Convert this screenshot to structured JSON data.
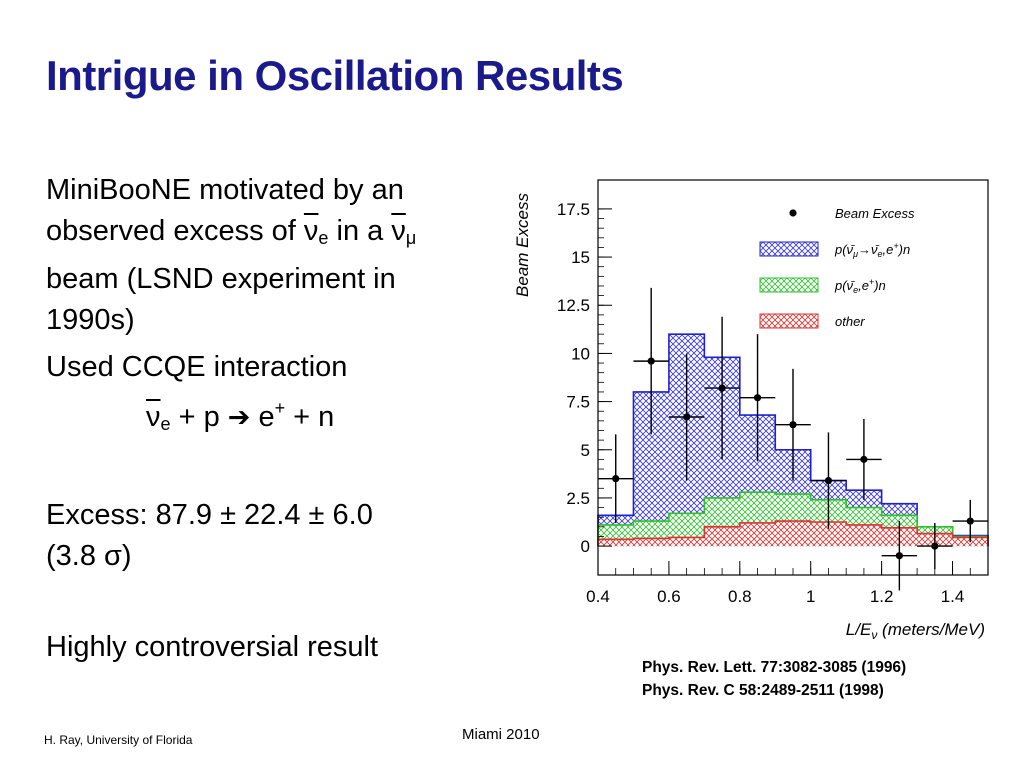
{
  "slide": {
    "title": "Intrigue in Oscillation Results",
    "bullet1": {
      "line1": "MiniBooNE motivated by an",
      "line2_pre": "observed excess of ",
      "nu_e": "ν",
      "sub_e": "e",
      "line2_mid": " in a ",
      "nu_mu": "ν",
      "sub_mu": "μ",
      "line3": "beam (LSND experiment in",
      "line4": "1990s)"
    },
    "bullet2": "Used CCQE interaction",
    "reaction": {
      "nu": "ν",
      "sub": "e",
      "lhs": " + p ",
      "arrow": "➔",
      "e": " e",
      "sup": "+",
      "rhs": " + n"
    },
    "excess": {
      "line1": "Excess: 87.9 ± 22.4 ± 6.0",
      "line2": "(3.8 σ)"
    },
    "bullet4": "Highly controversial result",
    "references": [
      "Phys. Rev. Lett. 77:3082-3085 (1996)",
      "Phys. Rev. C 58:2489-2511 (1998)"
    ],
    "footer_left": "H. Ray, University of Florida",
    "footer_center": "Miami 2010"
  },
  "chart_data": {
    "type": "bar",
    "title": "",
    "xlabel": "L/Eν (meters/MeV)",
    "ylabel": "Beam Excess",
    "xlim": [
      0.4,
      1.5
    ],
    "ylim": [
      -1.5,
      19
    ],
    "xticks": [
      0.4,
      0.6,
      0.8,
      1.0,
      1.2,
      1.4
    ],
    "xtick_labels": [
      "0.4",
      "0.6",
      "0.8",
      "1",
      "1.2",
      "1.4"
    ],
    "yticks": [
      0,
      2.5,
      5,
      7.5,
      10,
      12.5,
      15,
      17.5
    ],
    "ytick_labels": [
      "0",
      "2.5",
      "5",
      "7.5",
      "10",
      "12.5",
      "15",
      "17.5"
    ],
    "bin_edges": [
      0.4,
      0.5,
      0.6,
      0.7,
      0.8,
      0.9,
      1.0,
      1.1,
      1.2,
      1.3,
      1.4,
      1.5
    ],
    "legend": {
      "position": "top-right",
      "entries": [
        {
          "label": "Beam Excess",
          "style": "marker"
        },
        {
          "label_pre": "p(ν̄",
          "label_sub": "μ",
          "label_mid": "→ν̄",
          "label_sub2": "e",
          "label_post": ",e",
          "label_sup": "+",
          "label_end": ")n",
          "style": "blue"
        },
        {
          "label_pre": "p(ν̄",
          "label_sub": "e",
          "label_post": ",e",
          "label_sup": "+",
          "label_end": ")n",
          "style": "green"
        },
        {
          "label": "other",
          "style": "red"
        }
      ]
    },
    "series": [
      {
        "name": "other",
        "color": "#e03030",
        "values": [
          0.35,
          0.4,
          0.45,
          1.0,
          1.2,
          1.3,
          1.25,
          1.1,
          0.95,
          0.65,
          0.45
        ]
      },
      {
        "color": "#30c030",
        "values": [
          1.1,
          1.3,
          1.7,
          2.5,
          2.8,
          2.7,
          2.4,
          2.0,
          1.6,
          1.0,
          0.5
        ]
      },
      {
        "color": "#2020d0",
        "values": [
          1.6,
          8.0,
          11.0,
          9.8,
          6.8,
          5.0,
          3.4,
          2.9,
          2.2,
          1.0,
          0.55
        ]
      }
    ],
    "data_points": {
      "name": "Beam Excess",
      "x": [
        0.45,
        0.55,
        0.65,
        0.75,
        0.85,
        0.95,
        1.05,
        1.15,
        1.25,
        1.35,
        1.45
      ],
      "y": [
        3.5,
        9.6,
        6.7,
        8.2,
        7.7,
        6.3,
        3.4,
        4.5,
        -0.5,
        0.0,
        1.3
      ],
      "yerr": [
        2.3,
        3.8,
        3.3,
        3.7,
        3.3,
        2.9,
        2.5,
        2.1,
        1.8,
        1.2,
        1.1
      ]
    }
  }
}
